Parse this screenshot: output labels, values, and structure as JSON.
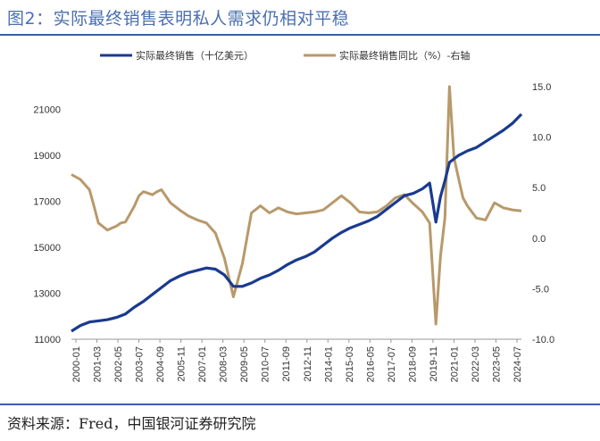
{
  "title": "图2：实际最终销售表明私人需求仍相对平稳",
  "source": "资料来源：Fred，中国银河证券研究院",
  "colors": {
    "series1": "#1a3a8f",
    "series2": "#b8996a",
    "title": "#4a6fb0",
    "rule": "#3b5ea8"
  },
  "chart_data": {
    "type": "line",
    "legend_placement": "top",
    "grid": false,
    "x_tick_labels": [
      "2000-01",
      "2001-03",
      "2002-05",
      "2003-07",
      "2004-09",
      "2005-11",
      "2007-01",
      "2008-03",
      "2009-05",
      "2010-07",
      "2011-09",
      "2012-11",
      "2014-01",
      "2015-03",
      "2016-05",
      "2017-07",
      "2018-09",
      "2019-11",
      "2021-01",
      "2022-03",
      "2023-05",
      "2024-07"
    ],
    "y_left": {
      "ylim": [
        11000,
        22000
      ],
      "ticks": [
        "11000",
        "13000",
        "15000",
        "17000",
        "19000",
        "21000"
      ]
    },
    "y_right": {
      "ylim": [
        -10,
        15
      ],
      "ticks": [
        "-10.0",
        "-5.0",
        "0.0",
        "5.0",
        "10.0",
        "15.0"
      ]
    },
    "series": [
      {
        "name": "实际最终销售（十亿美元）",
        "axis": "left",
        "x": [
          2000.0,
          2000.5,
          2001.0,
          2001.5,
          2002.0,
          2002.5,
          2003.0,
          2003.5,
          2004.0,
          2004.5,
          2005.0,
          2005.5,
          2006.0,
          2006.5,
          2007.0,
          2007.5,
          2008.0,
          2008.5,
          2009.0,
          2009.5,
          2010.0,
          2010.5,
          2011.0,
          2011.5,
          2012.0,
          2012.5,
          2013.0,
          2013.5,
          2014.0,
          2014.5,
          2015.0,
          2015.5,
          2016.0,
          2016.5,
          2017.0,
          2017.5,
          2018.0,
          2018.5,
          2019.0,
          2019.5,
          2019.9,
          2020.25,
          2020.5,
          2020.75,
          2021.0,
          2021.5,
          2022.0,
          2022.5,
          2023.0,
          2023.5,
          2024.0,
          2024.5,
          2025.0
        ],
        "values": [
          11350,
          11600,
          11750,
          11800,
          11850,
          11950,
          12100,
          12400,
          12650,
          12950,
          13250,
          13550,
          13750,
          13900,
          14000,
          14100,
          14050,
          13800,
          13300,
          13300,
          13450,
          13650,
          13800,
          14000,
          14250,
          14450,
          14600,
          14800,
          15100,
          15400,
          15650,
          15850,
          16000,
          16150,
          16350,
          16650,
          16950,
          17250,
          17350,
          17550,
          17800,
          16100,
          17200,
          17900,
          18700,
          19000,
          19200,
          19350,
          19600,
          19850,
          20100,
          20400,
          20800
        ]
      },
      {
        "name": "实际最终销售同比（%）-右轴",
        "axis": "right",
        "x": [
          2000.0,
          2000.5,
          2001.0,
          2001.25,
          2001.5,
          2002.0,
          2002.5,
          2002.75,
          2003.0,
          2003.5,
          2003.75,
          2004.0,
          2004.5,
          2004.75,
          2005.0,
          2005.5,
          2006.0,
          2006.5,
          2007.0,
          2007.5,
          2008.0,
          2008.5,
          2009.0,
          2009.5,
          2010.0,
          2010.5,
          2011.0,
          2011.5,
          2012.0,
          2012.5,
          2013.0,
          2013.5,
          2014.0,
          2014.5,
          2015.0,
          2015.5,
          2016.0,
          2016.5,
          2017.0,
          2017.5,
          2018.0,
          2018.5,
          2019.0,
          2019.5,
          2019.9,
          2020.25,
          2020.5,
          2020.75,
          2021.0,
          2021.25,
          2021.5,
          2021.75,
          2022.0,
          2022.5,
          2023.0,
          2023.5,
          2024.0,
          2024.5,
          2025.0
        ],
        "values": [
          6.3,
          5.8,
          4.8,
          3.2,
          1.5,
          0.8,
          1.2,
          1.5,
          1.6,
          3.2,
          4.2,
          4.6,
          4.3,
          4.6,
          4.8,
          3.5,
          2.8,
          2.2,
          1.8,
          1.5,
          0.5,
          -2.0,
          -5.8,
          -2.5,
          2.5,
          3.2,
          2.5,
          3.0,
          2.6,
          2.4,
          2.5,
          2.6,
          2.8,
          3.5,
          4.2,
          3.5,
          2.6,
          2.5,
          2.6,
          3.2,
          4.0,
          4.3,
          3.4,
          2.6,
          1.5,
          -8.5,
          -1.8,
          2.0,
          15.0,
          8.0,
          6.0,
          4.0,
          3.2,
          2.0,
          1.8,
          3.5,
          3.0,
          2.8,
          2.7
        ]
      }
    ]
  }
}
